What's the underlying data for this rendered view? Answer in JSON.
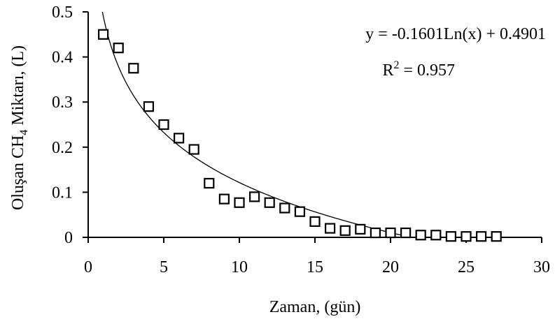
{
  "chart_data": {
    "type": "scatter",
    "title": "",
    "xlabel": "Zaman, (gün)",
    "ylabel_parts": [
      "Oluşan CH",
      "4",
      " Miktarı, (L)"
    ],
    "xlim": [
      0,
      30
    ],
    "ylim": [
      0,
      0.5
    ],
    "x_ticks": [
      "0",
      "5",
      "10",
      "15",
      "20",
      "25",
      "30"
    ],
    "y_ticks": [
      "0",
      "0.1",
      "0.2",
      "0.3",
      "0.4",
      "0.5"
    ],
    "grid": false,
    "marker": "open-square",
    "series": [
      {
        "x": [
          1,
          2,
          3,
          4,
          5,
          6,
          7,
          8,
          9,
          10,
          11,
          12,
          13,
          14,
          15,
          16,
          17,
          18,
          19,
          20,
          21,
          22,
          23,
          24,
          25,
          26,
          27
        ],
        "y": [
          0.45,
          0.42,
          0.375,
          0.29,
          0.25,
          0.22,
          0.195,
          0.12,
          0.085,
          0.077,
          0.09,
          0.077,
          0.065,
          0.057,
          0.035,
          0.02,
          0.015,
          0.018,
          0.01,
          0.01,
          0.01,
          0.005,
          0.005,
          0.002,
          0.002,
          0.002,
          0.002
        ]
      }
    ],
    "trendline": {
      "type": "logarithmic",
      "a": -0.1601,
      "b": 0.4901,
      "equation": "y = -0.1601Ln(x) + 0.4901",
      "r2_prefix": "R",
      "r2_sup": "2",
      "r2_suffix": " = 0.957"
    }
  }
}
